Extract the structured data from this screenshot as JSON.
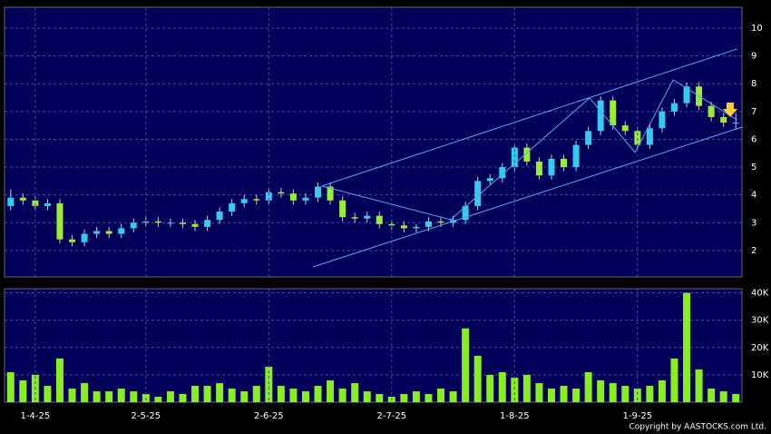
{
  "chart_data": [
    {
      "type": "candlestick",
      "categories": [
        null,
        null,
        "1-4-25",
        null,
        null,
        null,
        null,
        null,
        null,
        null,
        null,
        "2-5-25",
        null,
        null,
        null,
        null,
        null,
        null,
        null,
        null,
        null,
        "2-6-25",
        null,
        null,
        null,
        null,
        null,
        null,
        null,
        null,
        null,
        "2-7-25",
        null,
        null,
        null,
        null,
        null,
        null,
        null,
        null,
        null,
        "1-8-25",
        null,
        null,
        null,
        null,
        null,
        null,
        null,
        null,
        null,
        "1-9-25",
        null,
        null,
        null,
        null,
        null,
        null,
        null,
        null
      ],
      "open": [
        3.6,
        3.9,
        3.8,
        3.6,
        3.7,
        2.4,
        2.3,
        2.6,
        2.7,
        2.6,
        2.8,
        3.0,
        3.05,
        3.0,
        3.0,
        2.95,
        2.85,
        3.1,
        3.4,
        3.7,
        3.85,
        3.8,
        4.1,
        4.05,
        3.8,
        3.9,
        4.3,
        3.8,
        3.2,
        3.15,
        3.25,
        2.95,
        2.9,
        2.8,
        2.85,
        3.05,
        3.0,
        3.1,
        3.6,
        4.5,
        4.6,
        5.0,
        5.7,
        5.2,
        4.7,
        5.3,
        5.0,
        5.8,
        6.3,
        7.4,
        6.5,
        6.3,
        5.8,
        6.4,
        7.0,
        7.3,
        7.9,
        7.2,
        6.8,
        6.6
      ],
      "high": [
        4.2,
        4.05,
        3.95,
        3.85,
        3.85,
        2.55,
        2.75,
        2.85,
        2.85,
        2.95,
        3.15,
        3.2,
        3.2,
        3.15,
        3.15,
        3.1,
        3.25,
        3.55,
        3.85,
        4.0,
        4.0,
        4.25,
        4.25,
        4.2,
        4.05,
        4.45,
        4.45,
        3.95,
        3.35,
        3.4,
        3.4,
        3.1,
        3.05,
        2.95,
        3.2,
        3.2,
        3.25,
        3.75,
        4.65,
        4.75,
        5.15,
        5.85,
        5.85,
        5.35,
        5.45,
        5.45,
        5.95,
        6.45,
        7.55,
        7.55,
        6.65,
        6.45,
        6.55,
        7.15,
        7.45,
        8.05,
        8.05,
        7.35,
        6.95,
        6.95
      ],
      "low": [
        3.45,
        3.65,
        3.45,
        3.45,
        2.25,
        2.15,
        2.15,
        2.45,
        2.45,
        2.45,
        2.65,
        2.85,
        2.85,
        2.85,
        2.8,
        2.7,
        2.7,
        2.95,
        3.25,
        3.55,
        3.65,
        3.65,
        3.9,
        3.65,
        3.65,
        3.75,
        3.65,
        3.05,
        3.0,
        3.0,
        2.8,
        2.75,
        2.65,
        2.65,
        2.7,
        2.85,
        2.85,
        2.95,
        3.45,
        4.35,
        4.45,
        4.85,
        5.05,
        4.55,
        4.55,
        4.85,
        4.85,
        5.65,
        6.15,
        6.35,
        6.15,
        5.65,
        5.65,
        6.25,
        6.85,
        7.15,
        7.05,
        6.65,
        6.45,
        6.35
      ],
      "close": [
        3.9,
        3.8,
        3.6,
        3.7,
        2.4,
        2.3,
        2.6,
        2.7,
        2.6,
        2.8,
        3.0,
        3.05,
        3.0,
        3.0,
        2.95,
        2.85,
        3.1,
        3.4,
        3.7,
        3.85,
        3.8,
        4.1,
        4.05,
        3.8,
        3.9,
        4.3,
        3.8,
        3.2,
        3.15,
        3.25,
        2.95,
        2.9,
        2.8,
        2.85,
        3.05,
        3.0,
        3.1,
        3.6,
        4.5,
        4.6,
        5.0,
        5.7,
        5.2,
        4.7,
        5.3,
        5.0,
        5.8,
        6.3,
        7.4,
        6.5,
        6.3,
        5.8,
        6.4,
        7.0,
        7.3,
        7.9,
        7.2,
        6.8,
        6.6,
        6.6
      ],
      "up_color": "#33ccee",
      "down_color": "#99ee33",
      "lines": [
        {
          "x": [
            25.3,
            59.1
          ],
          "y": [
            4.32,
            9.25
          ]
        },
        {
          "x": [
            24.6,
            59.5
          ],
          "y": [
            1.41,
            6.44
          ]
        },
        {
          "x": [
            25.3,
            35.8,
            47.1,
            50.8,
            53.9,
            59.1
          ],
          "y": [
            4.32,
            3.11,
            7.49,
            5.53,
            8.14,
            6.7
          ]
        }
      ],
      "line_color": "#55aaee",
      "ylim": [
        1.05,
        10.75
      ],
      "yticks": [
        2,
        3,
        4,
        5,
        6,
        7,
        8,
        9,
        10
      ],
      "grid": true
    },
    {
      "type": "bar",
      "values": [
        11,
        8,
        10,
        6,
        16,
        5,
        7,
        4,
        4,
        5,
        4,
        3,
        2,
        4,
        3,
        6,
        6,
        7,
        5,
        4,
        6,
        13,
        6,
        5,
        4,
        6,
        8,
        5,
        7,
        4,
        3,
        2,
        3,
        4,
        3,
        5,
        4,
        27,
        17,
        10,
        11,
        9,
        10,
        7,
        5,
        6,
        5,
        11,
        8,
        7,
        6,
        5,
        6,
        8,
        16,
        40,
        12,
        5,
        4,
        3
      ],
      "color": "#88ee22",
      "ylim": [
        0,
        41.5
      ],
      "yticks": [
        {
          "value": 10,
          "label": "10K"
        },
        {
          "value": 20,
          "label": "20K"
        },
        {
          "value": 30,
          "label": "30K"
        },
        {
          "value": 40,
          "label": "40K"
        }
      ],
      "grid": true
    }
  ],
  "footer": "Copyright by AASTOCKS.com Ltd."
}
